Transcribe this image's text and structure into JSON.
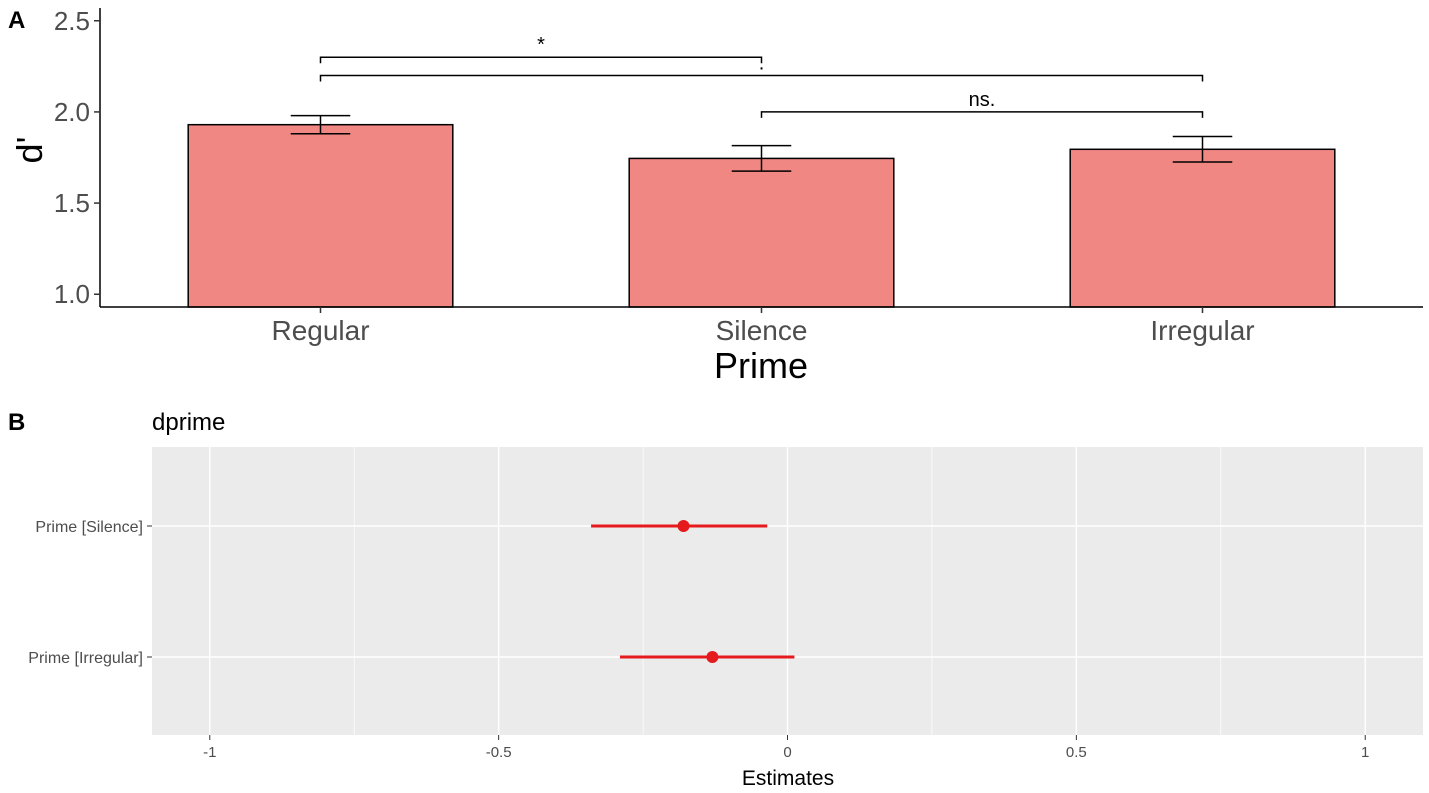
{
  "chart_data": [
    {
      "type": "bar",
      "panel": "A",
      "title": "",
      "xlabel": "Prime",
      "ylabel": "d'",
      "categories": [
        "Regular",
        "Silence",
        "Irregular"
      ],
      "values": [
        1.93,
        1.745,
        1.795
      ],
      "errors": [
        [
          1.88,
          1.98
        ],
        [
          1.675,
          1.815
        ],
        [
          1.725,
          1.865
        ]
      ],
      "ylim": [
        0.93,
        2.57
      ],
      "yticks": [
        1.0,
        1.5,
        2.0,
        2.5
      ],
      "ytick_labels": [
        "1.0",
        "1.5",
        "2.0",
        "2.5"
      ],
      "bar_color": "#f08783",
      "grid": false,
      "annotations": [
        {
          "from": "Regular",
          "to": "Silence",
          "y": 2.3,
          "label": "*"
        },
        {
          "from": "Regular",
          "to": "Irregular",
          "y": 2.2,
          "label": "."
        },
        {
          "from": "Silence",
          "to": "Irregular",
          "y": 2.0,
          "label": "ns."
        }
      ]
    },
    {
      "type": "scatter",
      "panel": "B",
      "title": "dprime",
      "xlabel": "Estimates",
      "ylabel": "",
      "terms": [
        "Prime [Silence]",
        "Prime [Irregular]"
      ],
      "estimates": [
        -0.18,
        -0.13
      ],
      "ci": [
        [
          -0.34,
          -0.035
        ],
        [
          -0.29,
          0.012
        ]
      ],
      "xlim": [
        -1.1,
        1.1
      ],
      "xticks": [
        -1,
        -0.5,
        0,
        0.5,
        1
      ],
      "xtick_labels": [
        "-1",
        "-0.5",
        "0",
        "0.5",
        "1"
      ],
      "point_color": "#e41a1c",
      "grid": true
    }
  ],
  "panels": {
    "a_label": "A",
    "b_label": "B"
  }
}
